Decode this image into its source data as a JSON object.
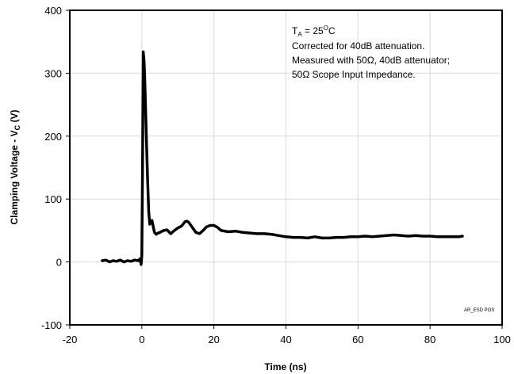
{
  "chart_data": {
    "type": "line",
    "title": "",
    "xlabel": "Time (ns)",
    "ylabel": {
      "main": "Clamping Voltage - V",
      "sub": "C",
      "unit": " (V)"
    },
    "xlim": [
      -20,
      100
    ],
    "ylim": [
      -100,
      400
    ],
    "x_ticks": [
      -20,
      0,
      20,
      40,
      60,
      80,
      100
    ],
    "y_ticks": [
      -100,
      0,
      100,
      200,
      300,
      400
    ],
    "grid": true,
    "annotations": {
      "line1": {
        "main": "T",
        "sub": "A",
        "rest": " = 25",
        "sup": "O",
        "end": "C"
      },
      "line2": "Corrected for 40dB attenuation.",
      "line3": "Measured with 50Ω, 40dB attenuator;",
      "line4": "50Ω Scope Input Impedance."
    },
    "watermark": "AR_ESD POS",
    "series": [
      {
        "color": "#000000",
        "points": [
          [
            -11,
            2
          ],
          [
            -10,
            3
          ],
          [
            -9,
            0
          ],
          [
            -8,
            2
          ],
          [
            -7,
            1
          ],
          [
            -6,
            3
          ],
          [
            -5,
            0
          ],
          [
            -4,
            2
          ],
          [
            -3,
            1
          ],
          [
            -2,
            3
          ],
          [
            -1,
            2
          ],
          [
            -0.5,
            5
          ],
          [
            -0.2,
            -4
          ],
          [
            0,
            10
          ],
          [
            0.2,
            150
          ],
          [
            0.4,
            334
          ],
          [
            0.6,
            320
          ],
          [
            0.8,
            290
          ],
          [
            1,
            250
          ],
          [
            1.3,
            190
          ],
          [
            1.6,
            130
          ],
          [
            1.9,
            80
          ],
          [
            2.2,
            60
          ],
          [
            2.5,
            62
          ],
          [
            2.8,
            66
          ],
          [
            3.1,
            58
          ],
          [
            3.5,
            47
          ],
          [
            4,
            44
          ],
          [
            4.5,
            46
          ],
          [
            5,
            47
          ],
          [
            6,
            50
          ],
          [
            7,
            51
          ],
          [
            8,
            45
          ],
          [
            9,
            50
          ],
          [
            10,
            54
          ],
          [
            11,
            57
          ],
          [
            12,
            64
          ],
          [
            12.5,
            65
          ],
          [
            13,
            63
          ],
          [
            14,
            55
          ],
          [
            15,
            47
          ],
          [
            16,
            45
          ],
          [
            17,
            50
          ],
          [
            18,
            56
          ],
          [
            19,
            58
          ],
          [
            20,
            58
          ],
          [
            21,
            55
          ],
          [
            22,
            50
          ],
          [
            24,
            48
          ],
          [
            26,
            49
          ],
          [
            28,
            47
          ],
          [
            30,
            46
          ],
          [
            32,
            45
          ],
          [
            34,
            45
          ],
          [
            36,
            44
          ],
          [
            38,
            42
          ],
          [
            40,
            40
          ],
          [
            42,
            39
          ],
          [
            44,
            39
          ],
          [
            46,
            38
          ],
          [
            48,
            40
          ],
          [
            50,
            38
          ],
          [
            52,
            38
          ],
          [
            54,
            39
          ],
          [
            56,
            39
          ],
          [
            58,
            40
          ],
          [
            60,
            40
          ],
          [
            62,
            41
          ],
          [
            64,
            40
          ],
          [
            66,
            41
          ],
          [
            68,
            42
          ],
          [
            70,
            43
          ],
          [
            72,
            42
          ],
          [
            74,
            41
          ],
          [
            76,
            42
          ],
          [
            78,
            41
          ],
          [
            80,
            41
          ],
          [
            82,
            40
          ],
          [
            84,
            40
          ],
          [
            86,
            40
          ],
          [
            88,
            40
          ],
          [
            89,
            41
          ]
        ]
      }
    ]
  }
}
